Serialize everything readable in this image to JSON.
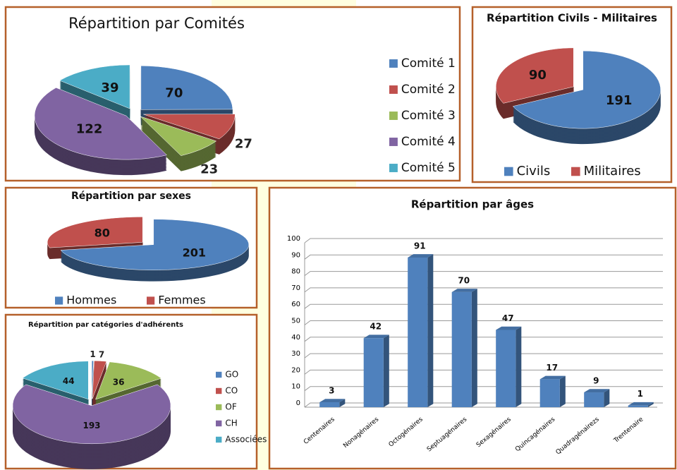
{
  "chart_data": [
    {
      "type": "pie",
      "title": "Répartition par Comités",
      "categories": [
        "Comité 1",
        "Comité 2",
        "Comité 3",
        "Comité 4",
        "Comité 5"
      ],
      "values": [
        70,
        27,
        23,
        122,
        39
      ],
      "colors": [
        "#4f81bd",
        "#c0504d",
        "#9bbb59",
        "#8064a2",
        "#4bacc6"
      ],
      "legend": "right"
    },
    {
      "type": "pie",
      "title": "Répartition Civils - Militaires",
      "categories": [
        "Civils",
        "Militaires"
      ],
      "values": [
        191,
        90
      ],
      "colors": [
        "#4f81bd",
        "#c0504d"
      ],
      "legend": "bottom"
    },
    {
      "type": "pie",
      "title": "Répartition par sexes",
      "categories": [
        "Hommes",
        "Femmes"
      ],
      "values": [
        201,
        80
      ],
      "colors": [
        "#4f81bd",
        "#c0504d"
      ],
      "legend": "bottom"
    },
    {
      "type": "pie",
      "title": "Répartition par catégories d'adhérents",
      "categories": [
        "GO",
        "CO",
        "OF",
        "CH",
        "Associées"
      ],
      "values": [
        1,
        7,
        36,
        193,
        44
      ],
      "colors": [
        "#4f81bd",
        "#c0504d",
        "#9bbb59",
        "#8064a2",
        "#4bacc6"
      ],
      "legend": "right"
    },
    {
      "type": "bar",
      "title": "Répartition par âges",
      "categories": [
        "Centenaires",
        "Nonagénaires",
        "Octogénaires",
        "Septuagénaires",
        "Sexagénaires",
        "Quincagénaires",
        "Quadragénairezs",
        "Trentenaire"
      ],
      "values": [
        3,
        42,
        91,
        70,
        47,
        17,
        9,
        1
      ],
      "color": "#4f81bd",
      "ylim": [
        0,
        100
      ],
      "yticks": [
        0,
        10,
        20,
        30,
        40,
        50,
        60,
        70,
        80,
        90,
        100
      ],
      "grid": true
    }
  ]
}
